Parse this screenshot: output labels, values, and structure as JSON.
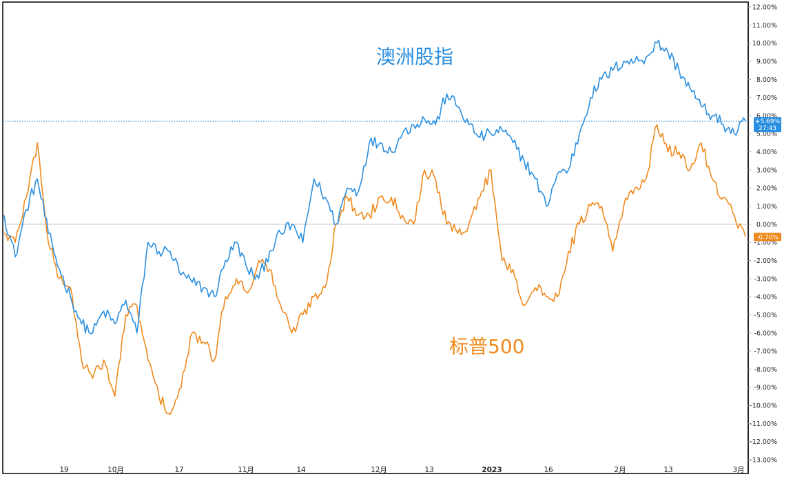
{
  "chart_data": {
    "type": "line",
    "xlabel": "",
    "ylabel": "",
    "ylim": [
      -13,
      12
    ],
    "y_unit": "%",
    "grid": false,
    "y_tick_labels": [
      "12.00%",
      "11.00%",
      "10.00%",
      "9.00%",
      "8.00%",
      "7.00%",
      "6.00%",
      "5.00%",
      "4.00%",
      "3.00%",
      "2.00%",
      "1.00%",
      "0.00%",
      "-1.00%",
      "-2.00%",
      "-3.00%",
      "-4.00%",
      "-5.00%",
      "-6.00%",
      "-7.00%",
      "-8.00%",
      "-9.00%",
      "-10.00%",
      "-11.00%",
      "-12.00%",
      "-13.00%"
    ],
    "x_tick_labels": [
      "19",
      "10月",
      "17",
      "11月",
      "14",
      "12月",
      "13",
      "2023",
      "16",
      "2月",
      "13",
      "3月"
    ],
    "series": [
      {
        "name": "澳洲股指",
        "color": "#2a8fe0",
        "values": [
          0.5,
          -1.8,
          0.8,
          2.5,
          -0.5,
          -2.5,
          -4.0,
          -5.5,
          -6.0,
          -4.8,
          -5.5,
          -4.2,
          -6.0,
          -1.0,
          -1.5,
          -1.5,
          -2.8,
          -3.2,
          -3.5,
          -4.0,
          -2.0,
          -1.0,
          -2.5,
          -3.0,
          -1.5,
          -0.5,
          0.0,
          -1.0,
          2.5,
          1.5,
          0.0,
          2.0,
          1.8,
          4.5,
          4.5,
          4.0,
          5.0,
          5.5,
          5.8,
          5.5,
          7.2,
          6.5,
          5.5,
          4.8,
          5.0,
          5.2,
          4.5,
          3.5,
          2.5,
          1.0,
          2.8,
          3.0,
          5.0,
          7.0,
          8.0,
          8.5,
          9.0,
          9.0,
          9.2,
          10.0,
          9.5,
          8.5,
          7.5,
          6.5,
          6.0,
          5.5,
          5.0,
          5.69
        ],
        "end_badge": "+5.69%",
        "end_badge_sub": "27:43",
        "label": "澳洲股指"
      },
      {
        "name": "标普500",
        "color": "#f0891d",
        "values": [
          -0.5,
          -1.0,
          1.5,
          4.5,
          -1.0,
          -3.0,
          -3.5,
          -7.5,
          -8.5,
          -7.5,
          -9.5,
          -5.0,
          -4.5,
          -7.5,
          -9.5,
          -10.5,
          -9.0,
          -6.0,
          -6.5,
          -7.5,
          -4.0,
          -3.0,
          -3.8,
          -2.0,
          -2.5,
          -4.5,
          -6.0,
          -5.0,
          -4.0,
          -3.5,
          0.0,
          1.5,
          0.5,
          0.5,
          1.5,
          1.5,
          0.5,
          0.0,
          3.0,
          2.5,
          0.0,
          -0.5,
          0.0,
          1.5,
          3.0,
          -2.0,
          -2.5,
          -4.5,
          -3.5,
          -4.0,
          -4.0,
          -1.5,
          0.0,
          1.0,
          1.0,
          -1.5,
          1.0,
          2.0,
          2.5,
          5.5,
          4.0,
          4.0,
          3.0,
          4.5,
          2.5,
          1.5,
          0.5,
          -0.7
        ],
        "end_badge": "-0.70%",
        "label": "标普500"
      }
    ],
    "zero_line": 0
  }
}
